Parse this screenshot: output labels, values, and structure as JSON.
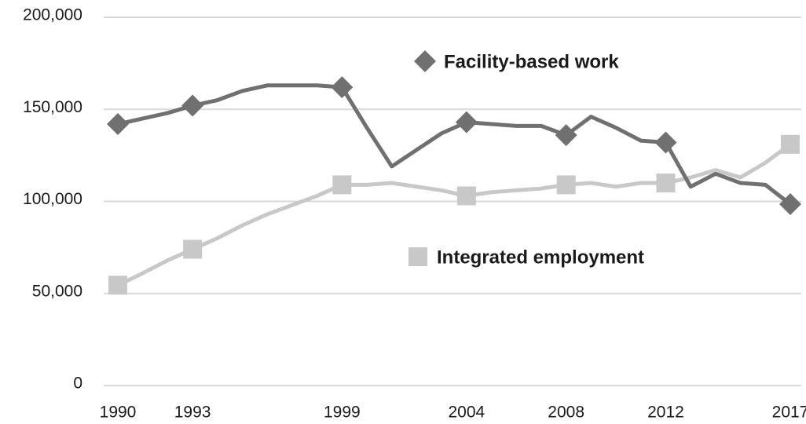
{
  "chart_data": {
    "type": "line",
    "x": [
      1990,
      1991,
      1992,
      1993,
      1994,
      1995,
      1996,
      1997,
      1998,
      1999,
      2000,
      2001,
      2002,
      2003,
      2004,
      2005,
      2006,
      2007,
      2008,
      2009,
      2010,
      2011,
      2012,
      2013,
      2014,
      2015,
      2016,
      2017
    ],
    "series": [
      {
        "name": "Facility-based work",
        "color": "#707070",
        "marker": "diamond",
        "values": [
          142000,
          145000,
          148000,
          152000,
          155000,
          160000,
          163000,
          163000,
          163000,
          162000,
          140000,
          119000,
          128000,
          137000,
          143000,
          142000,
          141000,
          141000,
          136000,
          146000,
          140000,
          133000,
          132000,
          108000,
          115000,
          110000,
          109000,
          98500
        ]
      },
      {
        "name": "Integrated employment",
        "color": "#c8c8c8",
        "marker": "square",
        "values": [
          54500,
          61000,
          68000,
          74000,
          80000,
          87000,
          93000,
          98000,
          103000,
          109000,
          109000,
          110000,
          108000,
          106000,
          103000,
          105000,
          106000,
          107000,
          109000,
          110000,
          108000,
          110000,
          110000,
          113000,
          117000,
          113000,
          121000,
          131000
        ]
      }
    ],
    "xlim": [
      1990,
      2017
    ],
    "xticks": [
      1990,
      1993,
      1999,
      2004,
      2008,
      2012,
      2017
    ],
    "ylim": [
      0,
      200000
    ],
    "yticks": [
      0,
      {
        "value": 50000,
        "label": "50,000"
      },
      {
        "value": 100000,
        "label": "100,000"
      },
      {
        "value": 150000,
        "label": "150,000"
      },
      {
        "value": 200000,
        "label": "200,000"
      }
    ],
    "grid": true
  }
}
